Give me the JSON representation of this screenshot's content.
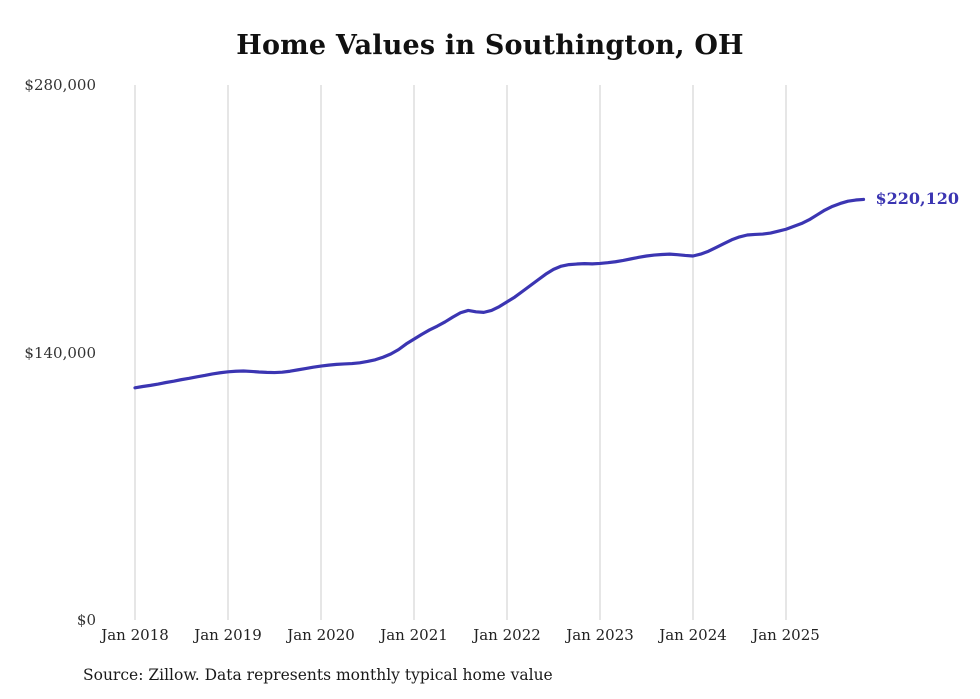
{
  "source_note": "Source: Zillow. Data represents monthly typical home value",
  "chart_data": {
    "type": "line",
    "title": "Home Values in Southington, OH",
    "series_name": "Typical home value",
    "x_unit": "month",
    "start_month": "2018-01",
    "frequency": "monthly",
    "end_label": "$220,120",
    "final_value": 220120,
    "ylim": [
      0,
      280000
    ],
    "grid": "vertical-only",
    "line_color": "#3b35b2",
    "grid_color": "#cccccc",
    "y_ticks": [
      {
        "label": "$0",
        "value": 0
      },
      {
        "label": "$140,000",
        "value": 140000
      },
      {
        "label": "$280,000",
        "value": 280000
      }
    ],
    "x_ticks": [
      {
        "label": "Jan 2018",
        "month_index": 0
      },
      {
        "label": "Jan 2019",
        "month_index": 12
      },
      {
        "label": "Jan 2020",
        "month_index": 24
      },
      {
        "label": "Jan 2021",
        "month_index": 36
      },
      {
        "label": "Jan 2022",
        "month_index": 48
      },
      {
        "label": "Jan 2023",
        "month_index": 60
      },
      {
        "label": "Jan 2024",
        "month_index": 72
      },
      {
        "label": "Jan 2025",
        "month_index": 84
      }
    ],
    "values": [
      121500,
      122200,
      122800,
      123500,
      124300,
      125000,
      125800,
      126500,
      127300,
      128000,
      128800,
      129400,
      129900,
      130200,
      130300,
      130100,
      129800,
      129600,
      129500,
      129700,
      130200,
      130900,
      131600,
      132300,
      132900,
      133400,
      133800,
      134000,
      134200,
      134600,
      135300,
      136200,
      137500,
      139200,
      141500,
      144500,
      147000,
      149500,
      151800,
      153800,
      156000,
      158500,
      160800,
      162000,
      161300,
      161000,
      162000,
      164000,
      166500,
      169000,
      172000,
      175000,
      178000,
      181000,
      183500,
      185200,
      186000,
      186300,
      186500,
      186400,
      186600,
      187000,
      187500,
      188200,
      189000,
      189800,
      190500,
      191000,
      191300,
      191500,
      191200,
      190800,
      190500,
      191500,
      193000,
      195000,
      197000,
      199000,
      200500,
      201500,
      201800,
      202000,
      202500,
      203500,
      204500,
      206000,
      207500,
      209500,
      212000,
      214500,
      216500,
      218000,
      219200,
      219800,
      220120
    ]
  }
}
